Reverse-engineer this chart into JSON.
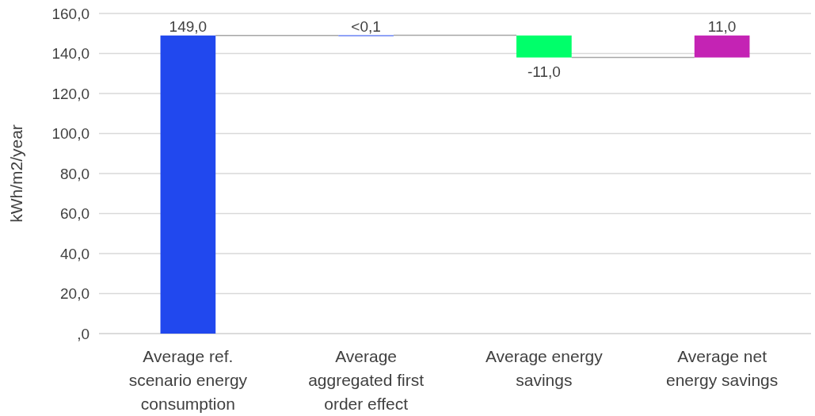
{
  "chart_data": {
    "type": "bar",
    "ylabel": "kWh/m2/year",
    "categories": [
      "Average ref. scenario energy consumption",
      "Average aggregated first order effect",
      "Average energy savings",
      "Average net energy savings"
    ],
    "values": [
      149,
      0.1,
      -11,
      11
    ],
    "base": [
      0,
      149,
      149,
      138
    ],
    "colors": [
      "#2148ee",
      "#2148ee",
      "#00ff6a",
      "#c423b4"
    ],
    "value_labels": [
      "149,0",
      "<0,1",
      "-11,0",
      "11,0"
    ],
    "ylim": [
      0,
      160
    ],
    "yticks": [
      {
        "value": 0,
        "label": ",0"
      },
      {
        "value": 20,
        "label": "20,0"
      },
      {
        "value": 40,
        "label": "40,0"
      },
      {
        "value": 60,
        "label": "60,0"
      },
      {
        "value": 80,
        "label": "80,0"
      },
      {
        "value": 100,
        "label": "100,0"
      },
      {
        "value": 120,
        "label": "120,0"
      },
      {
        "value": 140,
        "label": "140,0"
      },
      {
        "value": 160,
        "label": "160,0"
      }
    ],
    "grid": "y"
  }
}
